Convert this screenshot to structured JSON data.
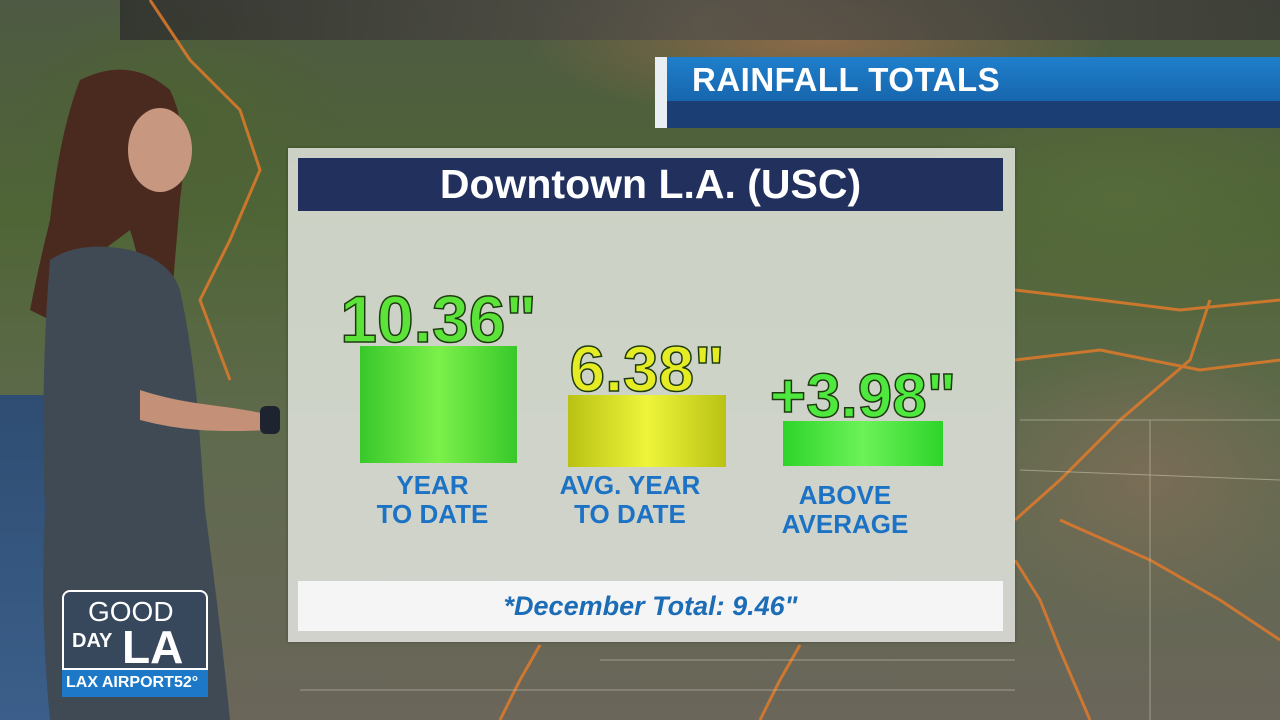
{
  "banner": {
    "title": "RAINFALL TOTALS"
  },
  "panel": {
    "heading": "Downtown L.A. (USC)",
    "footnote": "*December Total: 9.46\""
  },
  "chart_data": {
    "type": "bar",
    "title": "Downtown L.A. (USC)",
    "categories": [
      "YEAR TO DATE",
      "AVG. YEAR TO DATE",
      "ABOVE AVERAGE"
    ],
    "category_lines": [
      [
        "YEAR",
        "TO DATE"
      ],
      [
        "AVG. YEAR",
        "TO DATE"
      ],
      [
        "ABOVE",
        "AVERAGE"
      ]
    ],
    "values": [
      10.36,
      6.38,
      3.98
    ],
    "value_labels": [
      "10.36\"",
      "6.38\"",
      "+3.98\""
    ],
    "unit": "inches",
    "colors": [
      "#55e02c",
      "#d6dd1c",
      "#48e43a"
    ],
    "ylim": [
      0,
      10.36
    ],
    "xlabel": "",
    "ylabel": ""
  },
  "logo": {
    "good": "GOOD",
    "day": "DAY",
    "la": "LA",
    "location": "LAX AIRPORT",
    "temperature": "52°"
  }
}
